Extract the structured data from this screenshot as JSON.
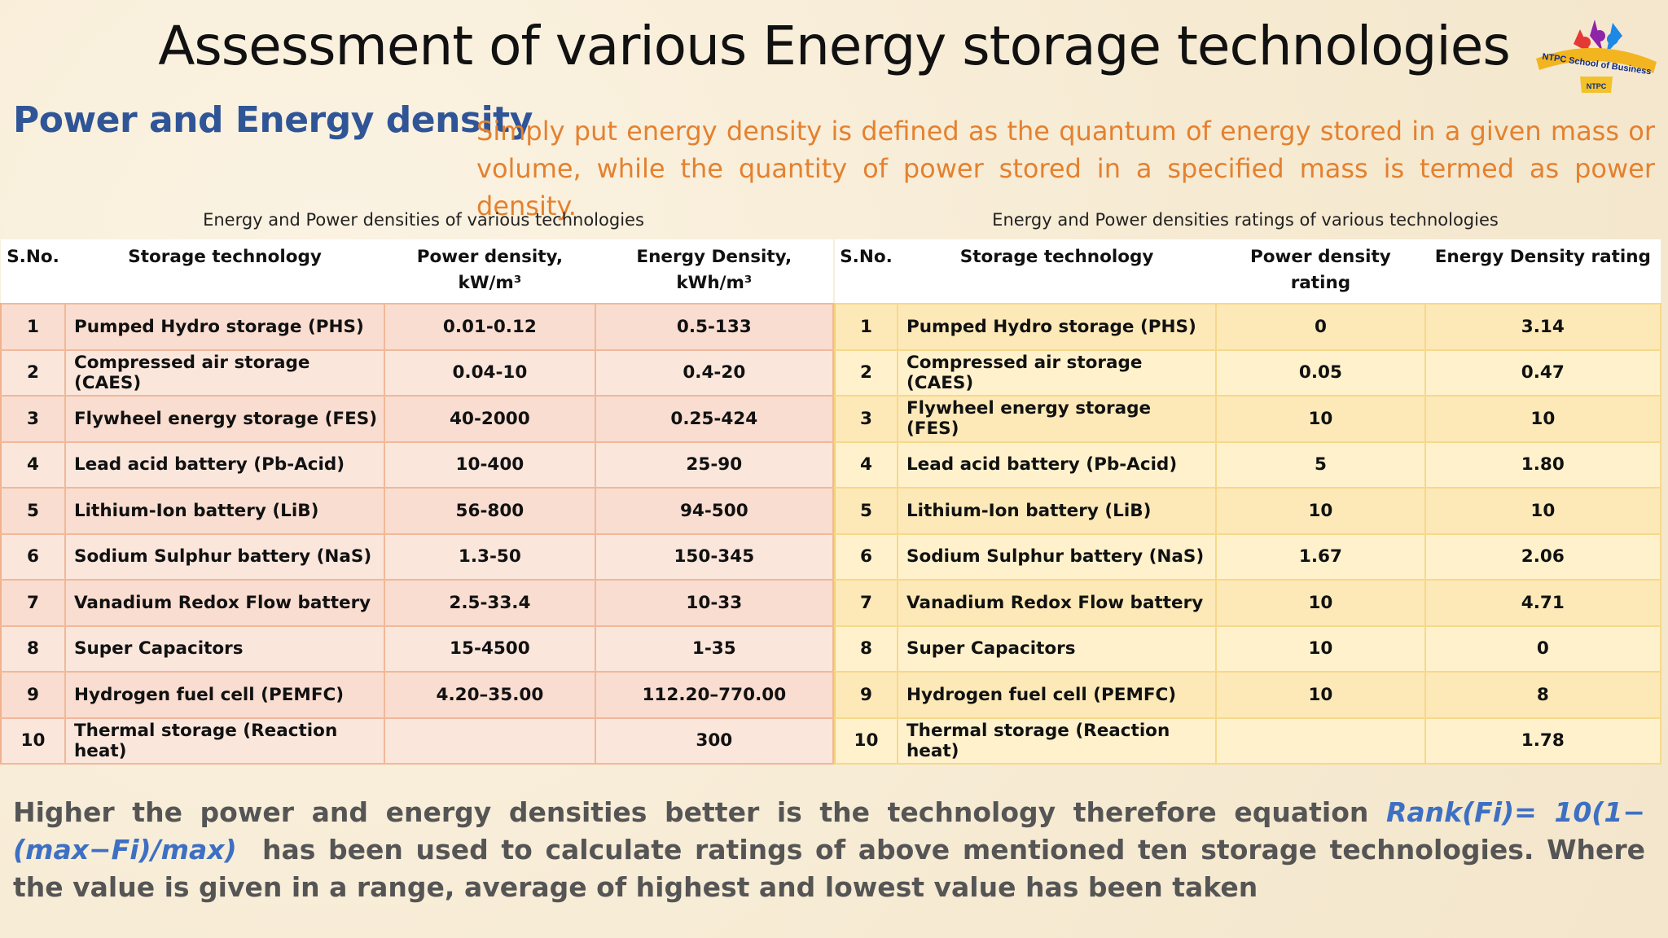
{
  "title": "Assessment of various Energy storage technologies",
  "logo": {
    "text": "NTPC School of Business",
    "sub": "NTPC"
  },
  "subtitle": "Power and Energy density",
  "definition": "Simply put energy density is defined as the quantum of energy stored in a given mass or volume, while the quantity of power stored in a specified mass is termed as power density.",
  "left_table": {
    "caption": "Energy and Power densities of various technologies",
    "headers": [
      "S.No.",
      "Storage technology",
      "Power density, kW/m³",
      "Energy Density, kWh/m³"
    ],
    "rows": [
      [
        "1",
        "Pumped Hydro storage (PHS)",
        "0.01-0.12",
        "0.5-133"
      ],
      [
        "2",
        "Compressed air storage (CAES)",
        "0.04-10",
        "0.4-20"
      ],
      [
        "3",
        "Flywheel energy storage (FES)",
        "40-2000",
        "0.25-424"
      ],
      [
        "4",
        "Lead acid battery (Pb-Acid)",
        "10-400",
        "25-90"
      ],
      [
        "5",
        "Lithium-Ion battery (LiB)",
        "56-800",
        "94-500"
      ],
      [
        "6",
        "Sodium Sulphur battery (NaS)",
        "1.3-50",
        "150-345"
      ],
      [
        "7",
        "Vanadium Redox Flow battery",
        "2.5-33.4",
        "10-33"
      ],
      [
        "8",
        "Super Capacitors",
        "15-4500",
        "1-35"
      ],
      [
        "9",
        "Hydrogen fuel cell (PEMFC)",
        "4.20–35.00",
        "112.20–770.00"
      ],
      [
        "10",
        "Thermal storage (Reaction heat)",
        "",
        "300"
      ]
    ]
  },
  "right_table": {
    "caption": "Energy and Power densities ratings of various technologies",
    "headers": [
      "S.No.",
      "Storage technology",
      "Power density rating",
      "Energy Density rating"
    ],
    "rows": [
      [
        "1",
        "Pumped Hydro storage (PHS)",
        "0",
        "3.14"
      ],
      [
        "2",
        "Compressed air storage (CAES)",
        "0.05",
        "0.47"
      ],
      [
        "3",
        "Flywheel energy storage (FES)",
        "10",
        "10"
      ],
      [
        "4",
        "Lead acid battery (Pb-Acid)",
        "5",
        "1.80"
      ],
      [
        "5",
        "Lithium-Ion battery (LiB)",
        "10",
        "10"
      ],
      [
        "6",
        "Sodium Sulphur battery (NaS)",
        "1.67",
        "2.06"
      ],
      [
        "7",
        "Vanadium Redox Flow battery",
        "10",
        "4.71"
      ],
      [
        "8",
        "Super Capacitors",
        "10",
        "0"
      ],
      [
        "9",
        "Hydrogen fuel cell (PEMFC)",
        "10",
        "8"
      ],
      [
        "10",
        "Thermal storage (Reaction heat)",
        "",
        "1.78"
      ]
    ]
  },
  "note": {
    "before": "Higher the power and energy densities better is the technology therefore equation ",
    "formula": "Rank(Fi)= 10(1−(max−Fi)/max)",
    "after": "  has been used to calculate ratings of above mentioned ten storage technologies. Where the value is given in a range, average of highest and lowest value has been taken"
  },
  "colors": {
    "subtitle": "#2f5597",
    "definition": "#e4812f",
    "formula": "#3d70c3",
    "note": "#555555"
  }
}
